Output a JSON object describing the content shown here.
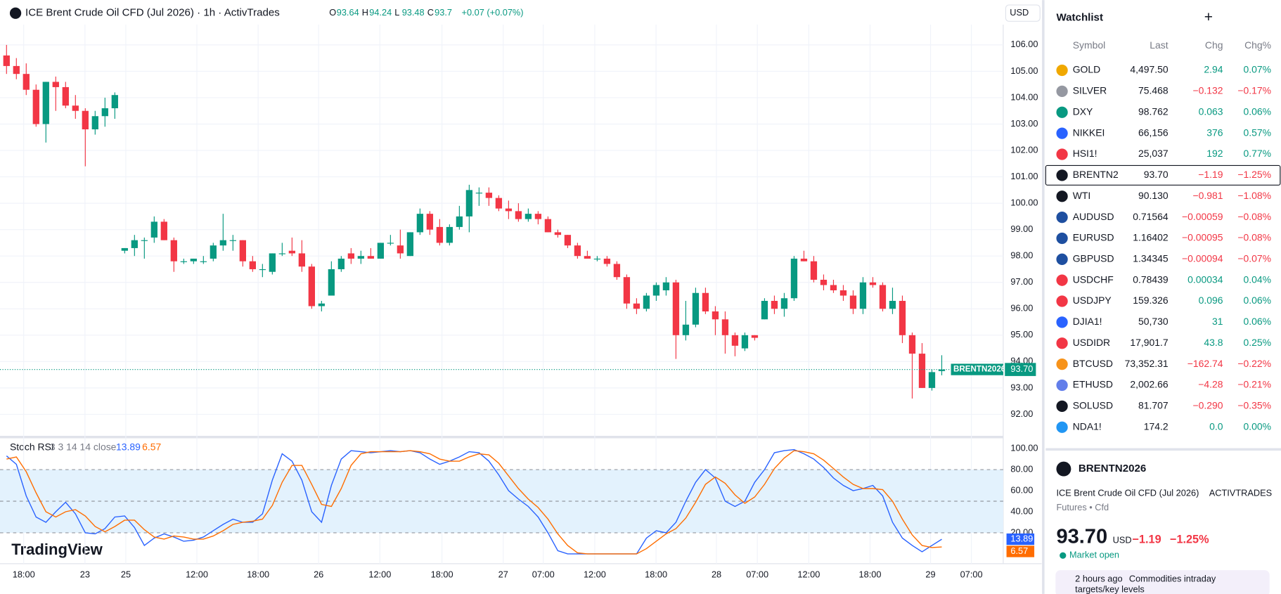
{
  "header": {
    "title": "ICE Brent Crude Oil CFD (Jul 2026) · 1h · ActivTrades",
    "ohlc_labels": [
      "O",
      "H",
      "L",
      "C"
    ],
    "change": "+0.07 (+0.07%)",
    "currency": "USD"
  },
  "chart_data": [
    {
      "type": "candlestick",
      "name": "BRENTN2026",
      "up_color": "#089981",
      "down_color": "#f23645",
      "ylim": [
        91.2,
        106.77
      ],
      "yticks": [
        {
          "value": 106,
          "label": "106.00"
        },
        {
          "value": 105,
          "label": "105.00"
        },
        {
          "value": 104,
          "label": "104.00"
        },
        {
          "value": 103,
          "label": "103.00"
        },
        {
          "value": 102,
          "label": "102.00"
        },
        {
          "value": 101,
          "label": "101.00"
        },
        {
          "value": 100,
          "label": "100.00"
        },
        {
          "value": 99,
          "label": "99.00"
        },
        {
          "value": 98,
          "label": "98.00"
        },
        {
          "value": 97,
          "label": "97.00"
        },
        {
          "value": 96,
          "label": "96.00"
        },
        {
          "value": 95,
          "label": "95.00"
        },
        {
          "value": 94,
          "label": "94.00"
        },
        {
          "value": 93,
          "label": "93.00"
        },
        {
          "value": 92,
          "label": "92.00"
        }
      ],
      "xticks": [
        "18:00",
        "23",
        "25",
        "12:00",
        "18:00",
        "26",
        "12:00",
        "18:00",
        "27",
        "07:00",
        "12:00",
        "18:00",
        "28",
        "07:00",
        "12:00",
        "18:00",
        "29",
        "07:00"
      ],
      "last_label": "93.70",
      "candles": [
        [
          105.6,
          106.0,
          104.9,
          105.2
        ],
        [
          105.2,
          105.5,
          104.7,
          104.9
        ],
        [
          104.9,
          105.3,
          104.1,
          104.3
        ],
        [
          104.3,
          104.5,
          102.9,
          103.0
        ],
        [
          103.0,
          104.6,
          102.3,
          104.6
        ],
        [
          104.6,
          104.8,
          103.5,
          104.4
        ],
        [
          104.4,
          104.6,
          103.6,
          103.7
        ],
        [
          103.7,
          104.1,
          103.2,
          103.5
        ],
        [
          103.5,
          103.6,
          101.4,
          102.8
        ],
        [
          102.8,
          103.5,
          102.6,
          103.3
        ],
        [
          103.3,
          104.0,
          102.9,
          103.6
        ],
        [
          103.6,
          104.2,
          103.2,
          104.1
        ],
        [
          98.2,
          98.3,
          98.1,
          98.3
        ],
        [
          98.3,
          98.8,
          98.0,
          98.6
        ],
        [
          98.6,
          98.7,
          97.9,
          98.6
        ],
        [
          98.7,
          99.5,
          98.5,
          99.3
        ],
        [
          99.3,
          99.4,
          98.6,
          98.6
        ],
        [
          98.6,
          98.7,
          97.4,
          97.8
        ],
        [
          97.8,
          97.9,
          97.7,
          97.8
        ],
        [
          97.8,
          97.9,
          97.7,
          97.9
        ],
        [
          97.8,
          98.0,
          97.7,
          97.8
        ],
        [
          97.9,
          98.5,
          97.8,
          98.4
        ],
        [
          98.4,
          99.6,
          98.2,
          98.6
        ],
        [
          98.6,
          98.8,
          98.2,
          98.6
        ],
        [
          98.6,
          98.6,
          97.6,
          97.8
        ],
        [
          97.8,
          98.0,
          97.4,
          97.5
        ],
        [
          97.5,
          97.7,
          97.2,
          97.5
        ],
        [
          97.4,
          98.1,
          97.3,
          98.1
        ],
        [
          98.1,
          98.5,
          98.0,
          98.1
        ],
        [
          98.2,
          98.7,
          98.0,
          98.1
        ],
        [
          98.1,
          98.6,
          97.4,
          97.6
        ],
        [
          97.6,
          97.7,
          96.0,
          96.1
        ],
        [
          96.1,
          96.3,
          95.9,
          96.2
        ],
        [
          96.5,
          97.8,
          96.5,
          97.5
        ],
        [
          97.5,
          98.0,
          97.4,
          97.9
        ],
        [
          98.1,
          98.3,
          97.7,
          97.9
        ],
        [
          97.9,
          98.2,
          97.7,
          98.0
        ],
        [
          98.0,
          98.3,
          97.9,
          97.9
        ],
        [
          97.9,
          98.5,
          97.9,
          98.5
        ],
        [
          98.5,
          98.8,
          98.4,
          98.5
        ],
        [
          98.4,
          99.0,
          97.9,
          98.1
        ],
        [
          98.0,
          98.9,
          98.0,
          98.9
        ],
        [
          98.9,
          99.8,
          98.8,
          99.6
        ],
        [
          99.6,
          99.7,
          98.8,
          99.0
        ],
        [
          99.1,
          99.4,
          98.4,
          98.5
        ],
        [
          98.5,
          99.2,
          98.4,
          99.1
        ],
        [
          99.1,
          99.9,
          99.0,
          99.5
        ],
        [
          99.5,
          100.7,
          98.9,
          100.5
        ],
        [
          100.4,
          100.6,
          99.9,
          100.4
        ],
        [
          100.4,
          100.6,
          99.9,
          100.2
        ],
        [
          100.2,
          100.3,
          99.7,
          99.8
        ],
        [
          99.8,
          100.1,
          99.4,
          99.7
        ],
        [
          99.7,
          100.0,
          99.3,
          99.4
        ],
        [
          99.4,
          99.8,
          99.3,
          99.6
        ],
        [
          99.6,
          99.7,
          99.2,
          99.4
        ],
        [
          99.4,
          99.5,
          98.9,
          98.9
        ],
        [
          98.9,
          99.0,
          98.7,
          98.8
        ],
        [
          98.8,
          98.8,
          98.3,
          98.4
        ],
        [
          98.4,
          98.5,
          97.9,
          98.0
        ],
        [
          98.0,
          98.2,
          97.9,
          97.9
        ],
        [
          97.9,
          98.0,
          97.8,
          97.9
        ],
        [
          97.9,
          98.0,
          97.6,
          97.7
        ],
        [
          97.7,
          97.8,
          97.1,
          97.2
        ],
        [
          97.2,
          97.3,
          96.0,
          96.2
        ],
        [
          96.2,
          96.4,
          95.8,
          96.0
        ],
        [
          96.0,
          96.6,
          95.9,
          96.5
        ],
        [
          96.5,
          97.0,
          96.3,
          96.9
        ],
        [
          96.7,
          97.2,
          96.5,
          97.0
        ],
        [
          97.0,
          97.1,
          94.1,
          95.0
        ],
        [
          95.0,
          96.3,
          94.8,
          95.4
        ],
        [
          95.4,
          96.8,
          95.3,
          96.6
        ],
        [
          96.6,
          96.8,
          95.8,
          95.9
        ],
        [
          95.9,
          96.1,
          95.0,
          95.6
        ],
        [
          95.6,
          95.9,
          94.3,
          95.0
        ],
        [
          95.0,
          95.1,
          94.2,
          94.6
        ],
        [
          94.5,
          95.1,
          94.4,
          95.0
        ],
        [
          95.0,
          95.0,
          94.8,
          94.9
        ],
        [
          95.6,
          96.4,
          95.6,
          96.3
        ],
        [
          96.3,
          96.5,
          95.8,
          96.0
        ],
        [
          96.0,
          96.6,
          95.7,
          96.4
        ],
        [
          96.4,
          98.0,
          96.3,
          97.9
        ],
        [
          97.9,
          98.2,
          97.8,
          97.8
        ],
        [
          97.8,
          98.0,
          97.0,
          97.1
        ],
        [
          97.1,
          97.3,
          96.7,
          96.9
        ],
        [
          96.9,
          97.1,
          96.6,
          96.7
        ],
        [
          96.7,
          96.9,
          96.3,
          96.5
        ],
        [
          96.5,
          96.7,
          95.8,
          96.0
        ],
        [
          96.0,
          97.2,
          95.8,
          97.0
        ],
        [
          97.0,
          97.2,
          96.8,
          96.9
        ],
        [
          96.9,
          97.0,
          95.9,
          96.0
        ],
        [
          96.0,
          96.8,
          95.8,
          96.3
        ],
        [
          96.3,
          96.5,
          94.7,
          95.0
        ],
        [
          95.0,
          95.1,
          92.6,
          94.3
        ],
        [
          94.3,
          94.7,
          93.0,
          93.0
        ],
        [
          93.0,
          93.7,
          92.9,
          93.6
        ],
        [
          93.64,
          94.24,
          93.48,
          93.7
        ]
      ]
    },
    {
      "type": "line",
      "title": "Stoch RSI",
      "params": "3 3 14 14 close",
      "ylim": [
        -9.3,
        109.3
      ],
      "yticks": [
        {
          "value": 100,
          "label": "100.00"
        },
        {
          "value": 80,
          "label": "80.00"
        },
        {
          "value": 60,
          "label": "60.00"
        },
        {
          "value": 40,
          "label": "40.00"
        },
        {
          "value": 20,
          "label": "20.00"
        }
      ],
      "bands": {
        "upper": 80,
        "middle": 50,
        "lower": 20
      },
      "band_color": "#e3f2fd",
      "series": [
        {
          "name": "K",
          "color": "#2962ff",
          "values": [
            93,
            85,
            55,
            35,
            30,
            40,
            49,
            38,
            20,
            19,
            24,
            35,
            36,
            25,
            8,
            15,
            19,
            16,
            12,
            13,
            16,
            22,
            28,
            33,
            30,
            30,
            38,
            70,
            95,
            88,
            70,
            40,
            30,
            65,
            90,
            98,
            97,
            96,
            97,
            98,
            97,
            98,
            96,
            90,
            85,
            88,
            92,
            97,
            96,
            88,
            75,
            60,
            52,
            45,
            35,
            20,
            3,
            0,
            0,
            0,
            0,
            0,
            0,
            0,
            0,
            15,
            22,
            20,
            30,
            50,
            68,
            80,
            72,
            50,
            45,
            50,
            68,
            80,
            96,
            98,
            99,
            95,
            90,
            82,
            72,
            65,
            60,
            62,
            65,
            55,
            30,
            15,
            8,
            2,
            8,
            13.89
          ]
        },
        {
          "name": "D",
          "color": "#ff6d00",
          "values": [
            90,
            92,
            78,
            58,
            40,
            35,
            40,
            42,
            36,
            26,
            21,
            26,
            32,
            32,
            23,
            16,
            14,
            17,
            16,
            14,
            14,
            17,
            22,
            28,
            30,
            31,
            33,
            46,
            68,
            84,
            84,
            66,
            47,
            45,
            62,
            84,
            95,
            97,
            97,
            97,
            97,
            98,
            97,
            95,
            90,
            88,
            88,
            92,
            95,
            94,
            86,
            74,
            62,
            52,
            44,
            33,
            19,
            8,
            1,
            0,
            0,
            0,
            0,
            0,
            0,
            5,
            12,
            19,
            24,
            34,
            49,
            66,
            73,
            67,
            56,
            48,
            54,
            66,
            81,
            91,
            98,
            97,
            95,
            89,
            81,
            73,
            66,
            62,
            62,
            61,
            50,
            33,
            18,
            8,
            6,
            6.57
          ]
        }
      ]
    }
  ],
  "branding": "TradingView",
  "watchlist": {
    "title": "Watchlist",
    "columns": [
      "Symbol",
      "Last",
      "Chg",
      "Chg%"
    ],
    "rows": [
      [
        "GOLD",
        "4,497.50",
        "2.94",
        "0.07%"
      ],
      [
        "SILVER",
        "75.468",
        "−0.132",
        "−0.17%"
      ],
      [
        "DXY",
        "98.762",
        "0.063",
        "0.06%"
      ],
      [
        "NIKKEI",
        "66,156",
        "376",
        "0.57%"
      ],
      [
        "HSI1!",
        "25,037",
        "192",
        "0.77%"
      ],
      [
        "BRENTN2",
        "93.70",
        "−1.19",
        "−1.25%"
      ],
      [
        "WTI",
        "90.130",
        "−0.981",
        "−1.08%"
      ],
      [
        "AUDUSD",
        "0.71564",
        "−0.00059",
        "−0.08%"
      ],
      [
        "EURUSD",
        "1.16402",
        "−0.00095",
        "−0.08%"
      ],
      [
        "GBPUSD",
        "1.34345",
        "−0.00094",
        "−0.07%"
      ],
      [
        "USDCHF",
        "0.78439",
        "0.00034",
        "0.04%"
      ],
      [
        "USDJPY",
        "159.326",
        "0.096",
        "0.06%"
      ],
      [
        "DJIA1!",
        "50,730",
        "31",
        "0.06%"
      ],
      [
        "USDIDR",
        "17,901.7",
        "43.8",
        "0.25%"
      ],
      [
        "BTCUSD",
        "73,352.31",
        "−162.74",
        "−0.22%"
      ],
      [
        "ETHUSD",
        "2,002.66",
        "−4.28",
        "−0.21%"
      ],
      [
        "SOLUSD",
        "81.707",
        "−0.290",
        "−0.35%"
      ],
      [
        "NDA1!",
        "174.2",
        "0.0",
        "0.00%"
      ]
    ]
  },
  "details": {
    "symbol": "BRENTN2026",
    "description": "ICE Brent Crude Oil CFD (Jul 2026)",
    "exchange": "ACTIVTRADES",
    "kind": "Futures • Cfd",
    "price": "93.70",
    "currency": "USD",
    "change": "−1.19",
    "change_pct": "−1.25%",
    "status": "Market open",
    "news_time": "2 hours ago",
    "news_title": "Commodities intraday",
    "news_title2": "targets/key levels"
  }
}
